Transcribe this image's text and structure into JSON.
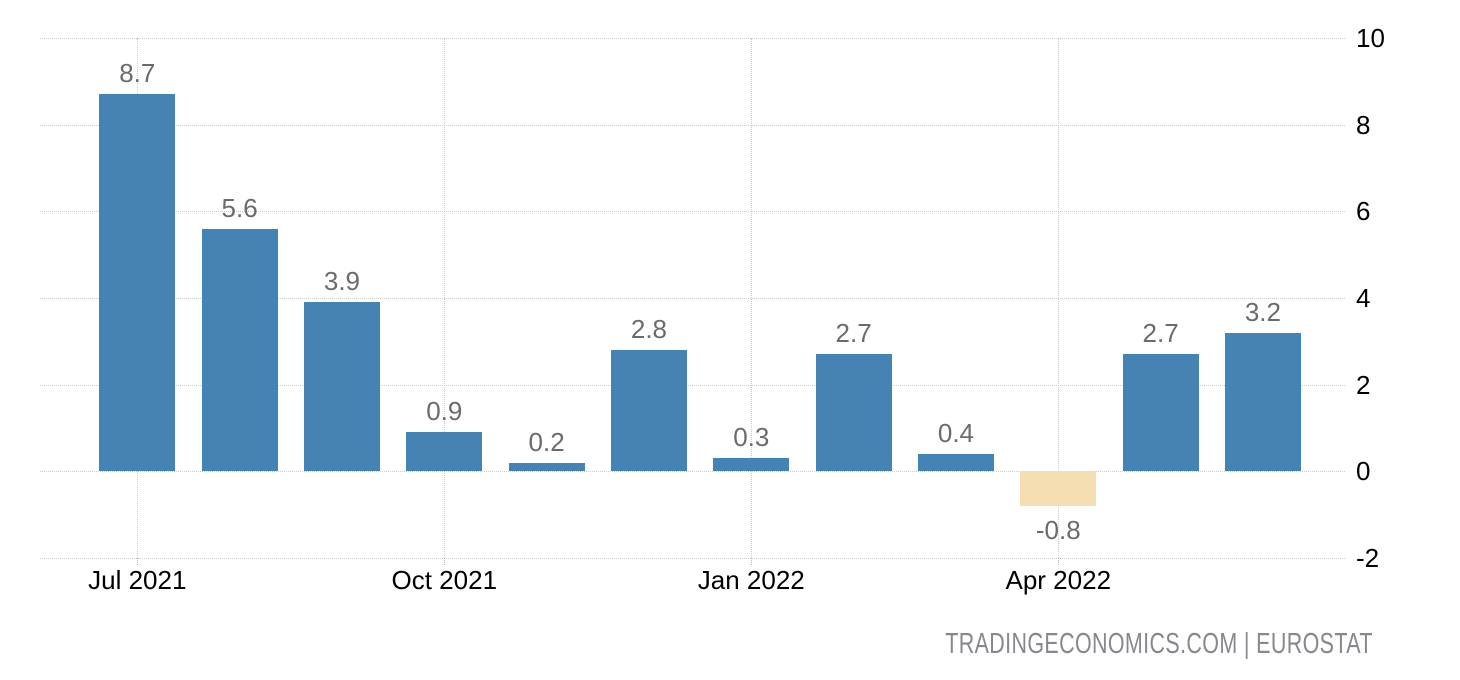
{
  "watermark": {
    "text": "TRADINGECONOMICS.COM | EUROSTAT"
  },
  "chart_data": {
    "type": "bar",
    "title": "",
    "xlabel": "",
    "ylabel": "",
    "values": [
      8.7,
      5.6,
      3.9,
      0.9,
      0.2,
      2.8,
      0.3,
      2.7,
      0.4,
      -0.8,
      2.7,
      3.2
    ],
    "value_labels": [
      "8.7",
      "5.6",
      "3.9",
      "0.9",
      "0.2",
      "2.8",
      "0.3",
      "2.7",
      "0.4",
      "-0.8",
      "2.7",
      "3.2"
    ],
    "x_ticks": [
      {
        "index": 0,
        "label": "Jul 2021"
      },
      {
        "index": 3,
        "label": "Oct 2021"
      },
      {
        "index": 6,
        "label": "Jan 2022"
      },
      {
        "index": 9,
        "label": "Apr 2022"
      }
    ],
    "y_ticks": [
      10,
      8,
      6,
      4,
      2,
      0,
      -2
    ],
    "ylim": [
      -2,
      10
    ],
    "grid": true,
    "legend": false,
    "colors": {
      "bar_positive": "#4583b4",
      "bar_negative": "#f4deb2",
      "grid_line": "#cbcbcb",
      "value_label": "#6b6b6b",
      "axis_label": "#000000",
      "watermark": "#85888c",
      "background": "#ffffff"
    }
  }
}
